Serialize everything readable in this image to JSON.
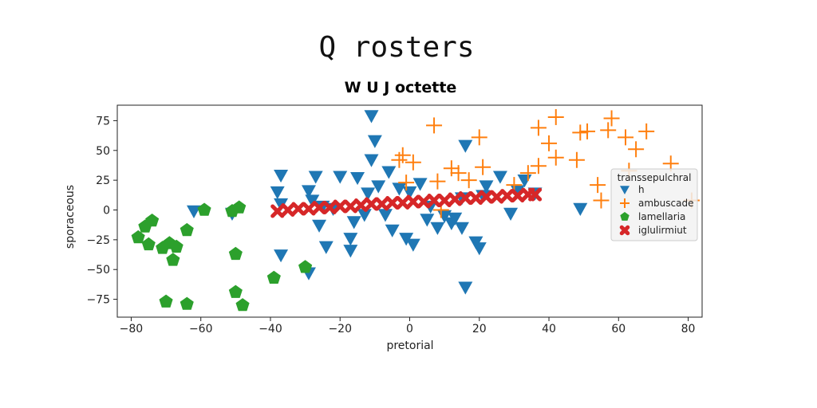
{
  "page": {
    "title": "Q rosters"
  },
  "chart_data": {
    "type": "scatter",
    "title": "W U J octette",
    "xlabel": "pretorial",
    "ylabel": "sporaceous",
    "xlim": [
      -84,
      84
    ],
    "ylim": [
      -90,
      88
    ],
    "xticks": [
      -80,
      -60,
      -40,
      -20,
      0,
      20,
      40,
      60,
      80
    ],
    "yticks": [
      75,
      50,
      25,
      0,
      -25,
      -50,
      -75
    ],
    "xtick_labels": [
      "−80",
      "−60",
      "−40",
      "−20",
      "0",
      "20",
      "40",
      "60",
      "80"
    ],
    "ytick_labels": [
      "75",
      "50",
      "25",
      "0",
      "−25",
      "−50",
      "−75"
    ],
    "grid": false,
    "legend": {
      "title": "transsepulchral",
      "placement": "right"
    },
    "series": [
      {
        "name": "h",
        "marker": "triangle-down",
        "color": "#1f77b4",
        "points": [
          [
            -11,
            79
          ],
          [
            -10,
            58
          ],
          [
            -11,
            42
          ],
          [
            -37,
            29
          ],
          [
            -38,
            15
          ],
          [
            -37,
            5
          ],
          [
            -27,
            28
          ],
          [
            -29,
            16
          ],
          [
            -28,
            8
          ],
          [
            -25,
            3
          ],
          [
            -22,
            1
          ],
          [
            -20,
            28
          ],
          [
            -15,
            27
          ],
          [
            -6,
            32
          ],
          [
            -3,
            18
          ],
          [
            0,
            15
          ],
          [
            -9,
            20
          ],
          [
            -12,
            14
          ],
          [
            -26,
            -13
          ],
          [
            -24,
            -31
          ],
          [
            -16,
            -10
          ],
          [
            -17,
            -24
          ],
          [
            -17,
            -34
          ],
          [
            -37,
            -38
          ],
          [
            -29,
            -53
          ],
          [
            -13,
            -4
          ],
          [
            -7,
            -4
          ],
          [
            -5,
            -17
          ],
          [
            -1,
            -24
          ],
          [
            1,
            -29
          ],
          [
            5,
            -8
          ],
          [
            8,
            -15
          ],
          [
            10,
            -5
          ],
          [
            12,
            -11
          ],
          [
            13,
            -7
          ],
          [
            15,
            -15
          ],
          [
            16,
            -65
          ],
          [
            16,
            54
          ],
          [
            19,
            -27
          ],
          [
            20,
            -32
          ],
          [
            22,
            20
          ],
          [
            26,
            28
          ],
          [
            29,
            -3
          ],
          [
            31,
            16
          ],
          [
            33,
            25
          ],
          [
            36,
            14
          ],
          [
            -62,
            -1
          ],
          [
            -51,
            -3
          ],
          [
            49,
            1
          ],
          [
            15,
            10
          ],
          [
            3,
            22
          ],
          [
            6,
            3
          ],
          [
            21,
            12
          ]
        ]
      },
      {
        "name": "ambuscade",
        "marker": "plus",
        "color": "#ff7f0e",
        "points": [
          [
            7,
            71
          ],
          [
            42,
            78
          ],
          [
            37,
            69
          ],
          [
            40,
            56
          ],
          [
            42,
            44
          ],
          [
            48,
            42
          ],
          [
            49,
            65
          ],
          [
            51,
            66
          ],
          [
            57,
            67
          ],
          [
            58,
            77
          ],
          [
            62,
            61
          ],
          [
            65,
            51
          ],
          [
            68,
            66
          ],
          [
            63,
            33
          ],
          [
            75,
            39
          ],
          [
            81,
            8
          ],
          [
            54,
            21
          ],
          [
            55,
            8
          ],
          [
            -3,
            42
          ],
          [
            -2,
            46
          ],
          [
            -1,
            23
          ],
          [
            8,
            24
          ],
          [
            12,
            35
          ],
          [
            14,
            31
          ],
          [
            17,
            25
          ],
          [
            21,
            36
          ],
          [
            34,
            31
          ],
          [
            37,
            37
          ],
          [
            30,
            21
          ],
          [
            9,
            0
          ],
          [
            20,
            61
          ],
          [
            1,
            40
          ]
        ]
      },
      {
        "name": "lamellaria",
        "marker": "pentagon",
        "color": "#2ca02c",
        "points": [
          [
            -78,
            -23
          ],
          [
            -76,
            -14
          ],
          [
            -74,
            -9
          ],
          [
            -75,
            -29
          ],
          [
            -71,
            -32
          ],
          [
            -69,
            -28
          ],
          [
            -67,
            -31
          ],
          [
            -68,
            -42
          ],
          [
            -70,
            -77
          ],
          [
            -64,
            -79
          ],
          [
            -64,
            -17
          ],
          [
            -59,
            0
          ],
          [
            -51,
            -1
          ],
          [
            -49,
            2
          ],
          [
            -50,
            -37
          ],
          [
            -50,
            -69
          ],
          [
            -48,
            -80
          ],
          [
            -39,
            -57
          ],
          [
            -30,
            -48
          ]
        ]
      },
      {
        "name": "iglulirmiut",
        "marker": "x",
        "color": "#d62728",
        "points": [
          [
            -38,
            -1
          ],
          [
            -35,
            0
          ],
          [
            -32,
            1
          ],
          [
            -29,
            1
          ],
          [
            -26,
            2
          ],
          [
            -23,
            2
          ],
          [
            -20,
            3
          ],
          [
            -17,
            3
          ],
          [
            -14,
            4
          ],
          [
            -11,
            5
          ],
          [
            -8,
            5
          ],
          [
            -5,
            6
          ],
          [
            -2,
            6
          ],
          [
            1,
            7
          ],
          [
            4,
            7
          ],
          [
            7,
            8
          ],
          [
            10,
            8
          ],
          [
            13,
            9
          ],
          [
            16,
            10
          ],
          [
            19,
            10
          ],
          [
            22,
            11
          ],
          [
            25,
            11
          ],
          [
            28,
            12
          ],
          [
            31,
            12
          ],
          [
            34,
            13
          ],
          [
            36,
            13
          ]
        ]
      }
    ]
  }
}
